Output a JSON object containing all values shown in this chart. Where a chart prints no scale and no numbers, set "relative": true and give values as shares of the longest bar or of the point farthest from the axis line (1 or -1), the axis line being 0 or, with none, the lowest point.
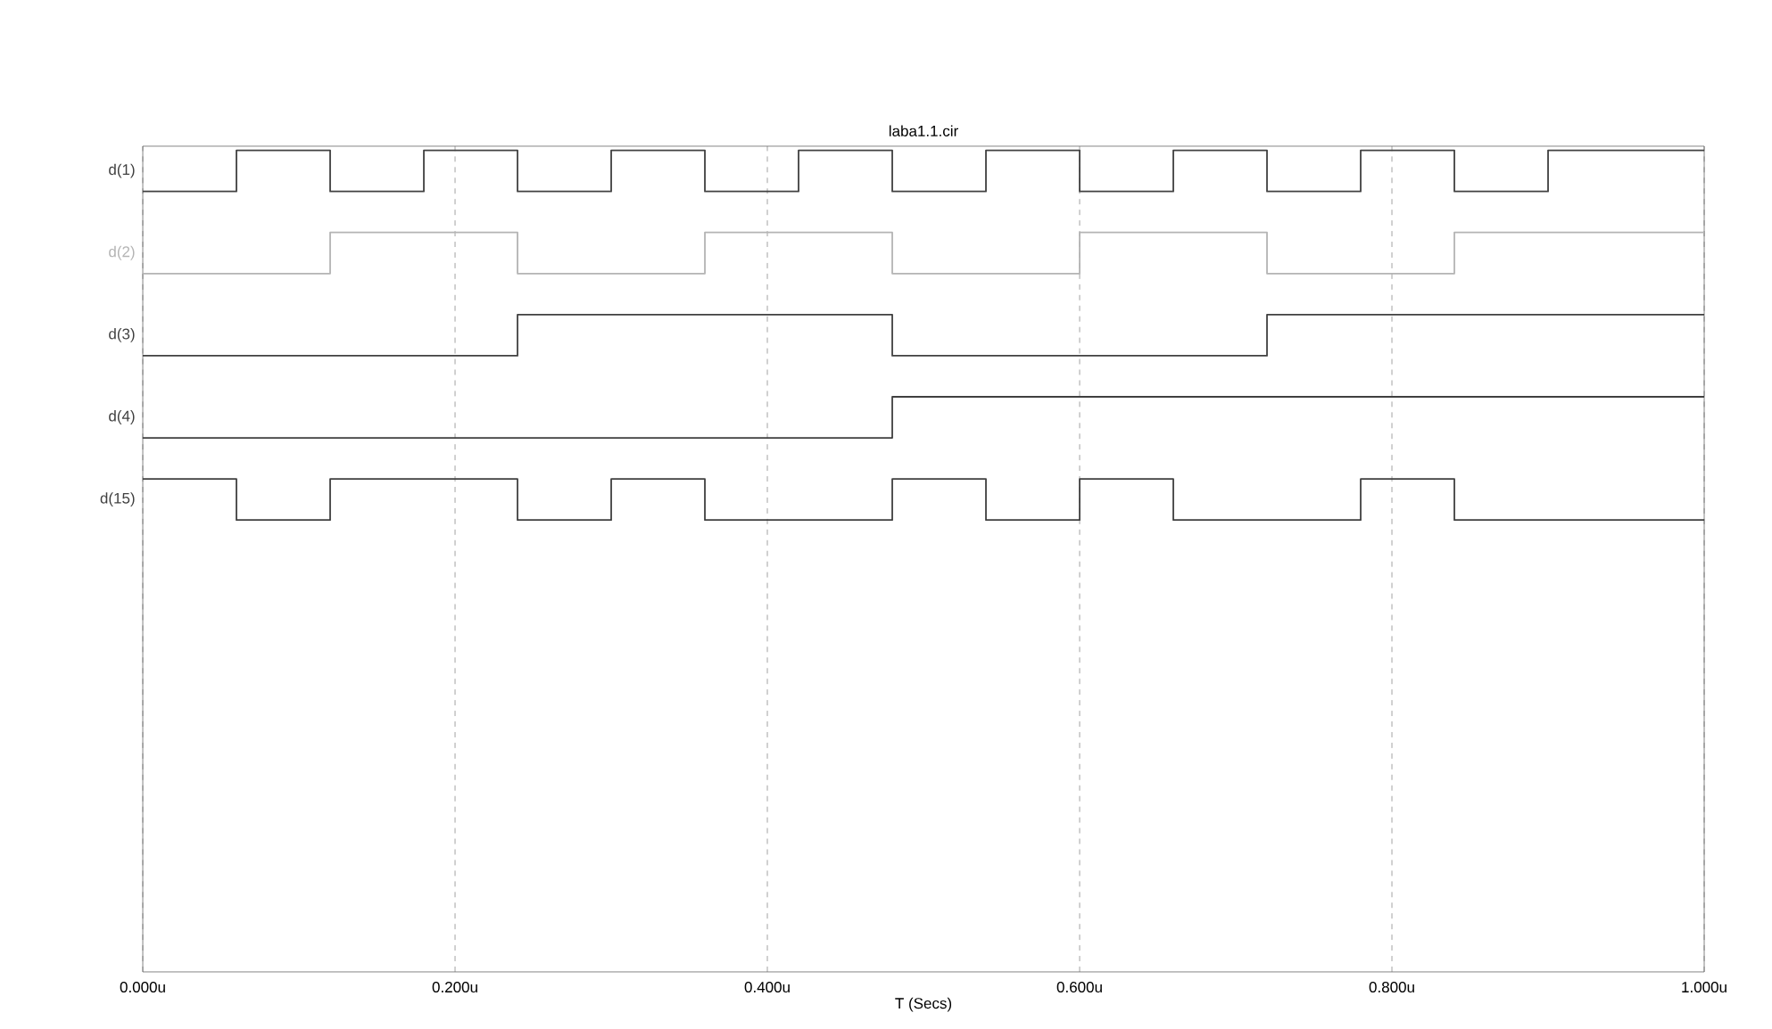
{
  "chart_data": {
    "type": "step",
    "title": "laba1.1.cir",
    "xlabel": "T (Secs)",
    "relative": true,
    "legend": false,
    "marker": "none",
    "line_style": "solid",
    "grid": "x",
    "xlim": [
      0,
      1
    ],
    "xticks": [
      {
        "value": 0,
        "label": "0.000u"
      },
      {
        "value": 0.2,
        "label": "0.200u"
      },
      {
        "value": 0.4,
        "label": "0.400u"
      },
      {
        "value": 0.6,
        "label": "0.600u"
      },
      {
        "value": 0.8,
        "label": "0.800u"
      },
      {
        "value": 1,
        "label": "1.000u"
      }
    ],
    "series": [
      {
        "name": "d(1)",
        "color": "#404040",
        "x": [
          0,
          0.06,
          0.12,
          0.18,
          0.24,
          0.3,
          0.36,
          0.42,
          0.48,
          0.54,
          0.6,
          0.66,
          0.72,
          0.78,
          0.84,
          0.9,
          1.0
        ],
        "values": [
          0.95,
          1,
          0.95,
          1,
          0.95,
          1,
          0.95,
          1,
          0.95,
          1,
          0.95,
          1,
          0.95,
          1,
          0.95,
          1,
          1
        ]
      },
      {
        "name": "d(2)",
        "color": "#b4b4b4",
        "x": [
          0,
          0.12,
          0.24,
          0.36,
          0.48,
          0.6,
          0.72,
          0.84,
          1.0
        ],
        "values": [
          0.85,
          0.9,
          0.85,
          0.9,
          0.85,
          0.9,
          0.85,
          0.9,
          0.9
        ]
      },
      {
        "name": "d(3)",
        "color": "#404040",
        "x": [
          0,
          0.24,
          0.48,
          0.72,
          1.0
        ],
        "values": [
          0.75,
          0.8,
          0.75,
          0.8,
          0.8
        ]
      },
      {
        "name": "d(4)",
        "color": "#404040",
        "x": [
          0,
          0.48,
          1.0
        ],
        "values": [
          0.65,
          0.7,
          0.7
        ]
      },
      {
        "name": "d(15)",
        "color": "#404040",
        "x": [
          0,
          0.06,
          0.12,
          0.24,
          0.3,
          0.36,
          0.48,
          0.54,
          0.6,
          0.66,
          0.78,
          0.84,
          1.0
        ],
        "values": [
          0.6,
          0.55,
          0.6,
          0.55,
          0.6,
          0.55,
          0.6,
          0.55,
          0.6,
          0.55,
          0.6,
          0.55,
          0.55
        ]
      }
    ]
  }
}
